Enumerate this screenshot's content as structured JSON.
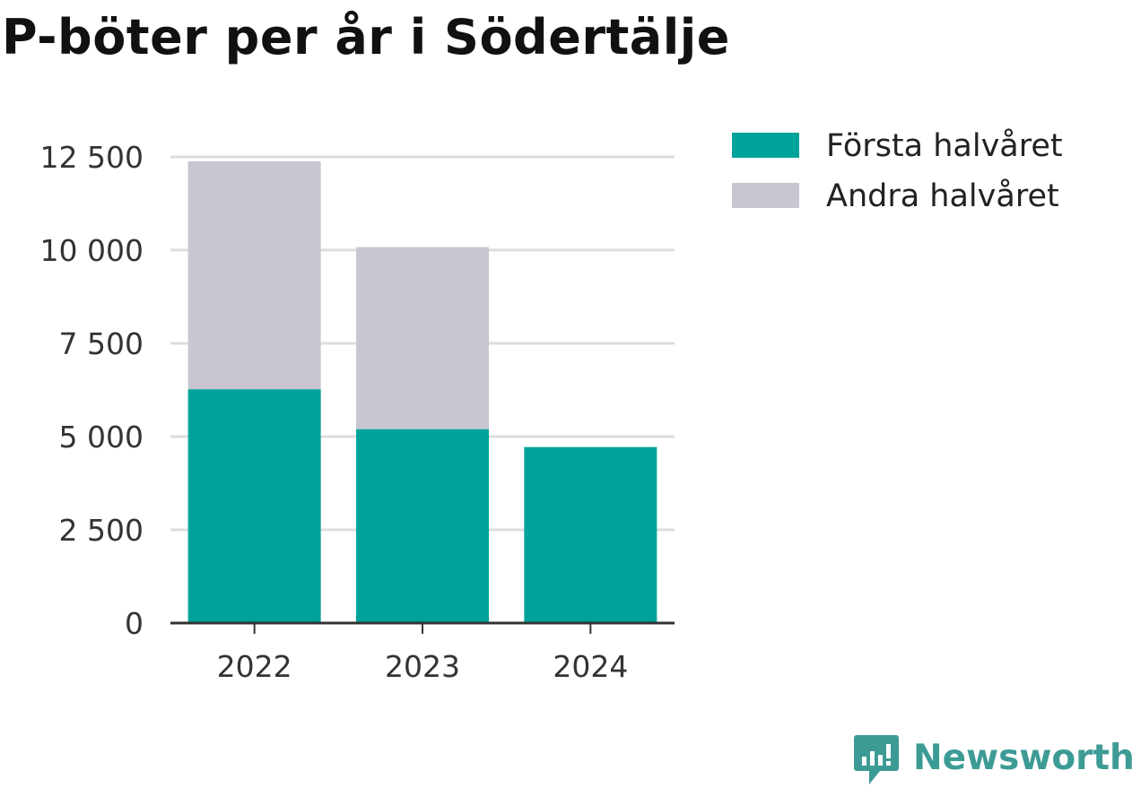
{
  "chart_data": {
    "type": "bar",
    "stacked": true,
    "title": "P-böter per år i Södertälje",
    "categories": [
      "2022",
      "2023",
      "2024"
    ],
    "series": [
      {
        "name": "Första halvåret",
        "color": "#00a39a",
        "values": [
          6270,
          5200,
          4720
        ]
      },
      {
        "name": "Andra halvåret",
        "color": "#c8c7d1",
        "values": [
          6110,
          4880,
          null
        ]
      }
    ],
    "yticks": [
      0,
      2500,
      5000,
      7500,
      10000,
      12500
    ],
    "ytick_labels": [
      "0",
      "2 500",
      "5 000",
      "7 500",
      "10 000",
      "12 500"
    ],
    "ylim": [
      0,
      12500
    ],
    "grid": true,
    "legend_position": "top-right"
  },
  "brand": {
    "name": "Newsworthy",
    "color": "#3d9b95",
    "icon": "newsworthy-logo-icon"
  }
}
